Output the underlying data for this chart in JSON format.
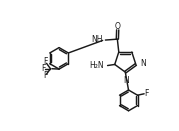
{
  "bg": "#ffffff",
  "lc": "#1a1a1a",
  "lw": 1.05,
  "fs": 5.5,
  "figsize": [
    1.79,
    1.31
  ],
  "dpi": 100,
  "xlim": [
    0,
    10
  ],
  "ylim": [
    0,
    7.3
  ]
}
